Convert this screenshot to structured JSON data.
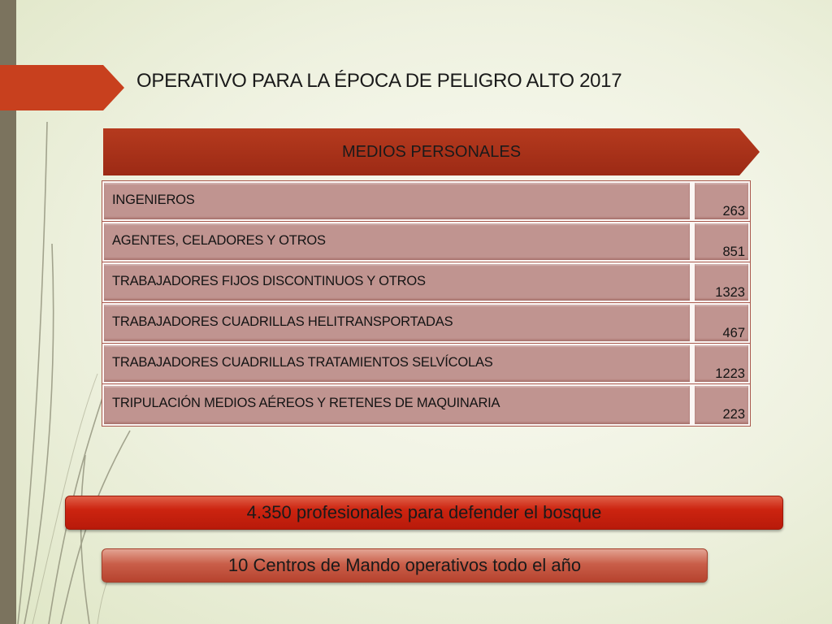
{
  "slide": {
    "title": "OPERATIVO PARA LA ÉPOCA DE PELIGRO ALTO 2017",
    "banner": "MEDIOS PERSONALES"
  },
  "table": {
    "rows": [
      {
        "label": "INGENIEROS",
        "value": "263"
      },
      {
        "label": "AGENTES, CELADORES Y OTROS",
        "value": "851"
      },
      {
        "label": "TRABAJADORES FIJOS DISCONTINUOS Y OTROS",
        "value": "1323"
      },
      {
        "label": "TRABAJADORES CUADRILLAS HELITRANSPORTADAS",
        "value": "467"
      },
      {
        "label": "TRABAJADORES CUADRILLAS TRATAMIENTOS SELVÍCOLAS",
        "value": "1223"
      },
      {
        "label": "TRIPULACIÓN MEDIOS AÉREOS Y RETENES DE MAQUINARIA",
        "value": "223"
      }
    ]
  },
  "callouts": {
    "primary": "4.350 profesionales para defender el bosque",
    "secondary": "10 Centros de Mando operativos todo el año"
  },
  "colors": {
    "accent": "#c8401e",
    "cell_fill": "#c09490",
    "callout_red": "#cc2410",
    "side_bar": "#7b735e"
  }
}
